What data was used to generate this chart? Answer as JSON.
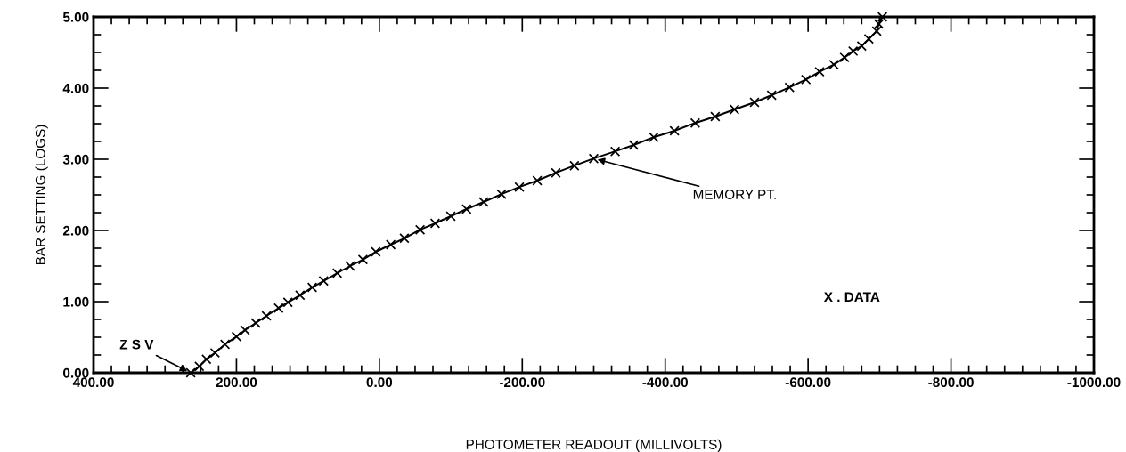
{
  "chart_data": {
    "type": "line",
    "xlabel": "PHOTOMETER READOUT (MILLIVOLTS)",
    "ylabel": "BAR SETTING (LOGS)",
    "xlim": [
      400,
      -1000
    ],
    "ylim": [
      0,
      5
    ],
    "xticks": [
      {
        "value": 400,
        "label": "400.00"
      },
      {
        "value": 200,
        "label": "200.00"
      },
      {
        "value": 0,
        "label": "0.00"
      },
      {
        "value": -200,
        "label": "-200.00"
      },
      {
        "value": -400,
        "label": "-400.00"
      },
      {
        "value": -600,
        "label": "-600.00"
      },
      {
        "value": -800,
        "label": "-800.00"
      },
      {
        "value": -1000,
        "label": "-1000.00"
      }
    ],
    "yticks": [
      {
        "value": 0,
        "label": "0.00"
      },
      {
        "value": 1,
        "label": "1.00"
      },
      {
        "value": 2,
        "label": "2.00"
      },
      {
        "value": 3,
        "label": "3.00"
      },
      {
        "value": 4,
        "label": "4.00"
      },
      {
        "value": 5,
        "label": "5.00"
      }
    ],
    "grid": false,
    "legend": false,
    "marker": "cross",
    "line_style": "solid",
    "series": [
      {
        "color": "#000000",
        "x": [
          264,
          252,
          242,
          230,
          216,
          200,
          188,
          173,
          158,
          141,
          128,
          111,
          94,
          78,
          59,
          41,
          23,
          5,
          -16,
          -35,
          -57,
          -78,
          -100,
          -122,
          -146,
          -171,
          -196,
          -221,
          -247,
          -273,
          -300,
          -330,
          -356,
          -384,
          -413,
          -442,
          -470,
          -497,
          -525,
          -549,
          -574,
          -597,
          -616,
          -636,
          -651,
          -663,
          -675,
          -685,
          -696,
          -699,
          -704
        ],
        "values": [
          0.0,
          0.09,
          0.19,
          0.28,
          0.4,
          0.51,
          0.6,
          0.7,
          0.8,
          0.91,
          0.99,
          1.09,
          1.2,
          1.29,
          1.4,
          1.5,
          1.59,
          1.7,
          1.8,
          1.89,
          2.01,
          2.1,
          2.2,
          2.3,
          2.4,
          2.51,
          2.61,
          2.7,
          2.81,
          2.91,
          3.01,
          3.11,
          3.2,
          3.31,
          3.4,
          3.51,
          3.6,
          3.7,
          3.8,
          3.9,
          4.01,
          4.12,
          4.23,
          4.33,
          4.43,
          4.52,
          4.59,
          4.69,
          4.8,
          4.9,
          5.0
        ]
      }
    ],
    "annotations": [
      {
        "text": "MEMORY PT.",
        "x": -300,
        "y": 3.01
      },
      {
        "text": "Z S V",
        "x": 264,
        "y": 0.0
      },
      "X . DATA"
    ]
  }
}
